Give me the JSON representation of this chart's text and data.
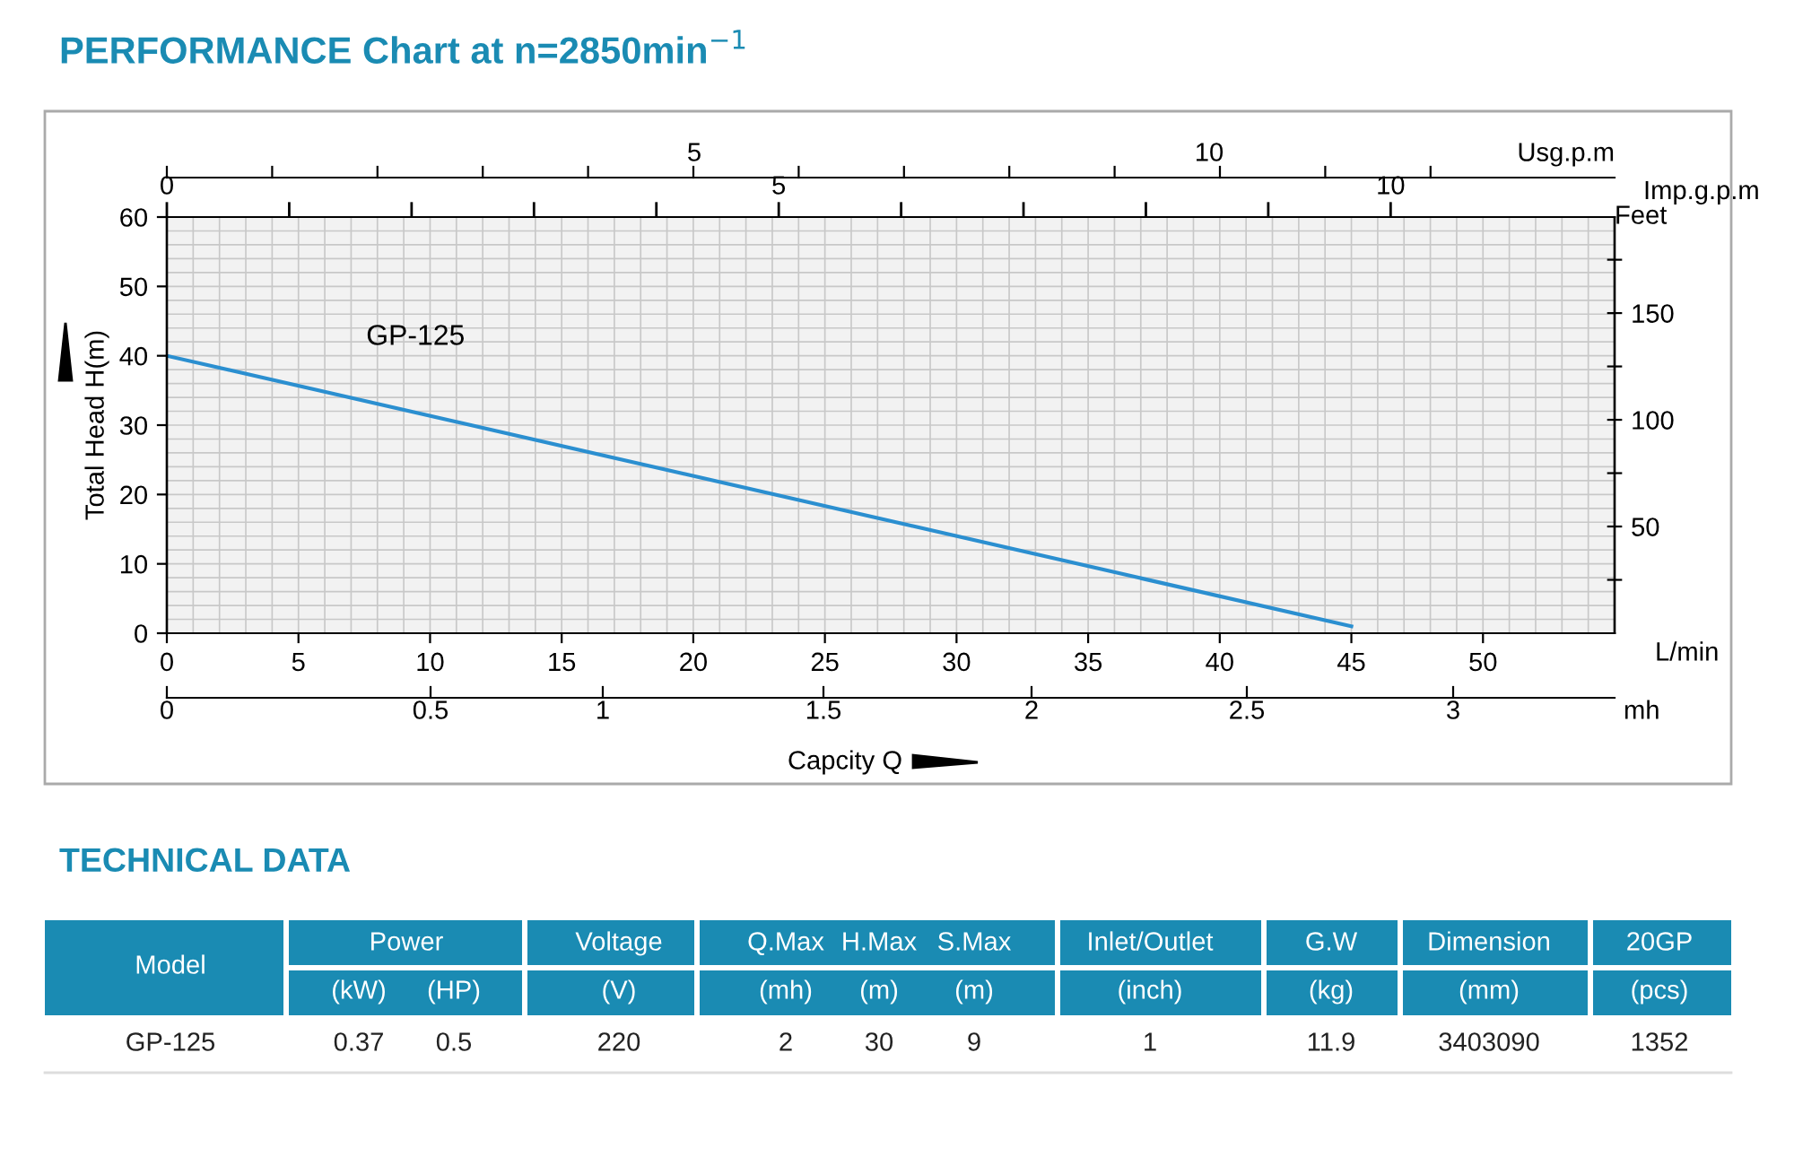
{
  "chart_data": [
    {
      "type": "line",
      "title": "PERFORMANCE Chart at n=2850min$^{−1}$",
      "ylabel": "Total Head H(m)",
      "xlabel": "L/min",
      "y2label": "Feet",
      "x2label": "Imp.g.p.m",
      "annotations": [
        "Capcity Q",
        "Usg.p.m",
        "5",
        "10",
        "mh",
        "0",
        "0.5",
        "1",
        "1.5",
        "2",
        "2.5",
        "3"
      ],
      "x": [
        0,
        45
      ],
      "series": [
        {
          "name": "GP-125",
          "color": "#2b8fd0",
          "values": [
            40,
            1
          ]
        }
      ],
      "xlim": [
        0,
        55
      ],
      "xticks": [
        0,
        5,
        10,
        15,
        20,
        25,
        30,
        35,
        40,
        45,
        50
      ],
      "ylim": [
        0,
        60
      ],
      "yticks": [
        0,
        10,
        20,
        30,
        40,
        50,
        60
      ],
      "y2lim": [
        0,
        195
      ],
      "y2ticks": [
        {
          "value": 25,
          "label": null
        },
        50,
        {
          "value": 75,
          "label": null
        },
        100,
        {
          "value": 125,
          "label": null
        },
        150,
        {
          "value": 175,
          "label": null
        }
      ],
      "x2lim": [
        0,
        11.83
      ],
      "x2ticks": [
        0,
        {
          "value": 1,
          "label": null
        },
        {
          "value": 2,
          "label": null
        },
        {
          "value": 3,
          "label": null
        },
        {
          "value": 4,
          "label": null
        },
        5,
        {
          "value": 6,
          "label": null
        },
        {
          "value": 7,
          "label": null
        },
        {
          "value": 8,
          "label": null
        },
        {
          "value": 9,
          "label": null
        },
        10
      ],
      "grid": true,
      "marker": "none",
      "line_style": "solid",
      "legend": false
    },
    {
      "type": "other",
      "title": "TECHNICAL DATA",
      "cell_labels": [
        [
          "Model",
          "Power",
          null,
          "Voltage",
          "Q.Max",
          "H.Max",
          "S.Max",
          "Inlet/Outlet",
          "G.W",
          "Dimension",
          "20GP"
        ],
        [
          null,
          "(kW)",
          "(HP)",
          "(V)",
          "(mh)",
          "(m)",
          "(m)",
          "(inch)",
          "(kg)",
          "(mm)",
          "(pcs)"
        ],
        [
          "GP-125",
          "0.37",
          "0.5",
          "220",
          "2",
          "30",
          "9",
          "1",
          "11.9",
          "3403090",
          "1352"
        ]
      ]
    }
  ]
}
